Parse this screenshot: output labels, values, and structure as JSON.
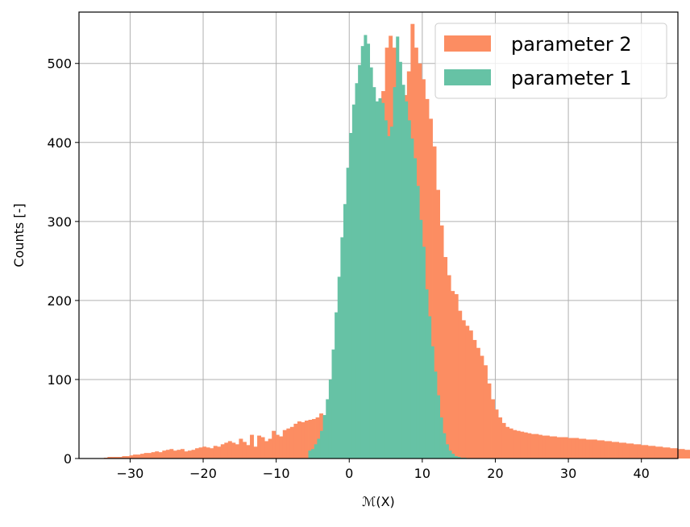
{
  "chart_data": {
    "type": "histogram",
    "xlabel": "ℳ(X)",
    "ylabel": "Counts [-]",
    "xlim": [
      -37,
      45
    ],
    "ylim": [
      0,
      565
    ],
    "xticks": [
      -30,
      -20,
      -10,
      0,
      10,
      20,
      30,
      40
    ],
    "xtick_labels": [
      "−30",
      "−20",
      "−10",
      "0",
      "10",
      "20",
      "30",
      "40"
    ],
    "yticks": [
      0,
      100,
      200,
      300,
      400,
      500
    ],
    "ytick_labels": [
      "0",
      "100",
      "200",
      "300",
      "400",
      "500"
    ],
    "grid": true,
    "legend_position": "top-right",
    "series": [
      {
        "name": "parameter 2",
        "color": "#fc8d62",
        "bin_start": -33.6,
        "bin_width": 0.5,
        "values": [
          1,
          2,
          2,
          2,
          2,
          3,
          3,
          4,
          5,
          5,
          6,
          7,
          7,
          8,
          9,
          8,
          10,
          11,
          12,
          10,
          11,
          12,
          9,
          10,
          11,
          13,
          14,
          15,
          14,
          13,
          16,
          15,
          18,
          20,
          22,
          20,
          18,
          25,
          21,
          17,
          30,
          15,
          29,
          27,
          22,
          25,
          35,
          30,
          28,
          36,
          38,
          40,
          44,
          47,
          46,
          48,
          49,
          50,
          52,
          57,
          54,
          59,
          65,
          70,
          78,
          84,
          90,
          100,
          120,
          135,
          157,
          185,
          225,
          280,
          340,
          400,
          465,
          520,
          535,
          520,
          500,
          470,
          460,
          490,
          550,
          520,
          500,
          480,
          455,
          430,
          395,
          340,
          295,
          255,
          232,
          212,
          208,
          187,
          175,
          168,
          162,
          150,
          140,
          130,
          118,
          95,
          75,
          62,
          52,
          45,
          40,
          38,
          36,
          35,
          34,
          33,
          32,
          31,
          31,
          30,
          29,
          29,
          28,
          28,
          27,
          27,
          27,
          26,
          26,
          26,
          25,
          25,
          24,
          24,
          24,
          23,
          23,
          22,
          22,
          21,
          21,
          20,
          20,
          19,
          19,
          18,
          18,
          17,
          17,
          16,
          16,
          15,
          15,
          14,
          14,
          13,
          13,
          12,
          12,
          11,
          11,
          10,
          10,
          9,
          9,
          8,
          8,
          7,
          7,
          6,
          6,
          5,
          5,
          4,
          4,
          3,
          3,
          2,
          2,
          2,
          1,
          1,
          5,
          1
        ]
      },
      {
        "name": "parameter 1",
        "color": "#66c2a5",
        "bin_start": -5.6,
        "bin_width": 0.4,
        "values": [
          10,
          12,
          18,
          25,
          35,
          55,
          75,
          100,
          138,
          185,
          230,
          280,
          322,
          368,
          412,
          448,
          475,
          498,
          522,
          536,
          525,
          495,
          470,
          452,
          456,
          450,
          428,
          408,
          420,
          470,
          534,
          502,
          473,
          452,
          428,
          405,
          380,
          345,
          302,
          268,
          214,
          180,
          142,
          110,
          80,
          52,
          32,
          18,
          10,
          6,
          3,
          2,
          1,
          1
        ]
      }
    ]
  }
}
